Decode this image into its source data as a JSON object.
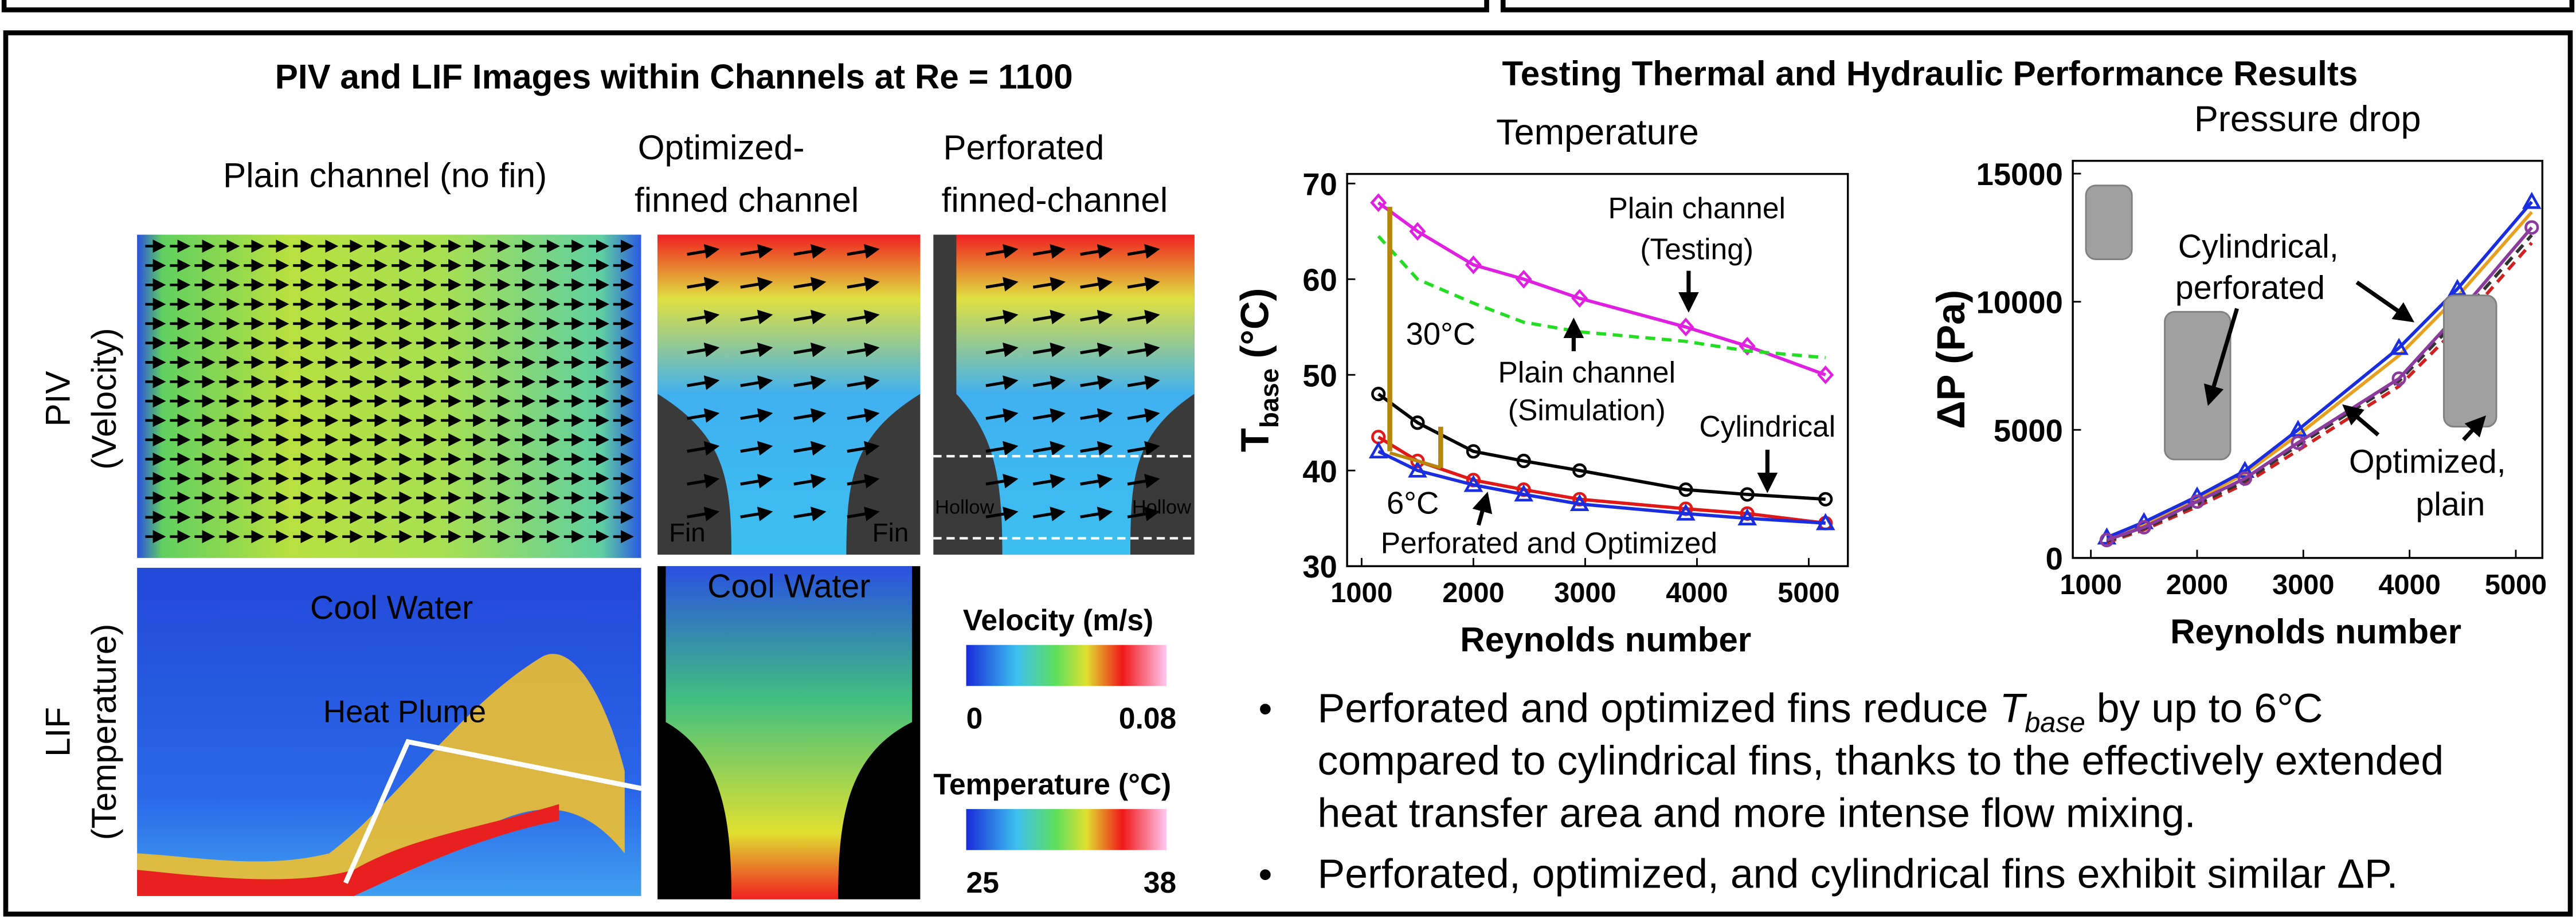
{
  "left_panel": {
    "title": "PIV and LIF Images within Channels at Re = 1100",
    "col1": "Plain channel (no fin)",
    "col2": [
      "Optimized-",
      "finned channel"
    ],
    "col3": [
      "Perforated",
      "finned-channel"
    ],
    "row1": [
      "PIV",
      "(Velocity)"
    ],
    "row2": [
      "LIF",
      "(Temperature)"
    ],
    "fin": "Fin",
    "hollow": "Hollow",
    "cool_water": "Cool Water",
    "heat_plume": "Heat Plume",
    "colorbars": [
      {
        "title": "Velocity (m/s)",
        "min": 0,
        "max": 0.08
      },
      {
        "title": "Temperature (°C)",
        "min": 25,
        "max": 38
      }
    ]
  },
  "right_panel": {
    "title": "Testing Thermal and Hydraulic Performance Results"
  },
  "chart_data": [
    {
      "type": "line",
      "title": "Temperature",
      "xlabel": "Reynolds number",
      "ylabel": "T",
      "ylabel_sub": "base",
      "ylabel_unit": "(°C)",
      "x": [
        1150,
        1500,
        2000,
        2450,
        2950,
        3900,
        4450,
        5150
      ],
      "xlim": [
        870,
        5350
      ],
      "xticks": [
        1000,
        2000,
        3000,
        4000,
        5000
      ],
      "ylim": [
        30,
        71
      ],
      "yticks": [
        30,
        40,
        50,
        60,
        70
      ],
      "series": [
        {
          "color": "#e020e0",
          "marker": "diamond",
          "values": [
            68,
            65,
            61.5,
            60,
            58,
            55,
            53,
            50
          ]
        },
        {
          "color": "#22dd22",
          "dash": true,
          "values": [
            64.5,
            60,
            57.5,
            55.5,
            54.5,
            53.5,
            52.5,
            51.8
          ]
        },
        {
          "color": "#000000",
          "marker": "circle",
          "values": [
            48,
            45,
            42,
            41,
            40,
            38,
            37.5,
            37
          ]
        },
        {
          "color": "#e01818",
          "marker": "circle",
          "values": [
            43.5,
            41,
            39,
            38,
            37,
            36,
            35.5,
            34.5
          ]
        },
        {
          "color": "#1a2ee0",
          "marker": "triangle",
          "values": [
            42,
            40,
            38.5,
            37.5,
            36.5,
            35.5,
            35,
            34.5
          ]
        }
      ],
      "annotations": [
        [
          "Plain channel",
          "(Testing)"
        ],
        [
          "Plain channel",
          "(Simulation)"
        ],
        [
          "Cylindrical"
        ],
        [
          "Perforated and Optimized"
        ],
        [
          "30°C"
        ],
        [
          "6°C"
        ]
      ]
    },
    {
      "type": "line",
      "title": "Pressure drop",
      "xlabel": "Reynolds number",
      "ylabel": "ΔP (Pa)",
      "x": [
        1150,
        1500,
        2000,
        2450,
        2950,
        3900,
        4450,
        5150
      ],
      "xlim": [
        830,
        5250
      ],
      "xticks": [
        1000,
        2000,
        3000,
        4000,
        5000
      ],
      "ylim": [
        0,
        15500
      ],
      "yticks": [
        0,
        5000,
        10000,
        15000
      ],
      "series": [
        {
          "color": "#e8a020",
          "values": [
            750,
            1300,
            2300,
            3300,
            4800,
            7900,
            10200,
            13500
          ]
        },
        {
          "color": "#1a2ee0",
          "marker": "triangle",
          "values": [
            800,
            1400,
            2400,
            3400,
            5000,
            8200,
            10500,
            13900
          ]
        },
        {
          "color": "#d02020",
          "dash": true,
          "values": [
            600,
            1100,
            2000,
            2900,
            4200,
            6700,
            9000,
            12300
          ]
        },
        {
          "color": "#333333",
          "dash": true,
          "values": [
            650,
            1150,
            2100,
            3000,
            4400,
            6900,
            9300,
            12600
          ]
        },
        {
          "color": "#8b3a9e",
          "marker": "circle",
          "values": [
            700,
            1200,
            2200,
            3100,
            4500,
            7000,
            9500,
            12900
          ]
        }
      ],
      "annotations": [
        [
          "Cylindrical,",
          "perforated"
        ],
        [
          "Optimized,",
          "plain"
        ]
      ]
    }
  ],
  "bullets": [
    {
      "first": [
        "Perforated and optimized fins reduce ",
        "T",
        "base",
        " by up to 6°C"
      ],
      "rest": [
        "compared to cylindrical fins, thanks to the effectively extended",
        "heat transfer area and more intense flow mixing."
      ]
    },
    {
      "first": [
        "Perforated, optimized, and cylindrical fins exhibit similar ΔP."
      ],
      "rest": []
    }
  ]
}
